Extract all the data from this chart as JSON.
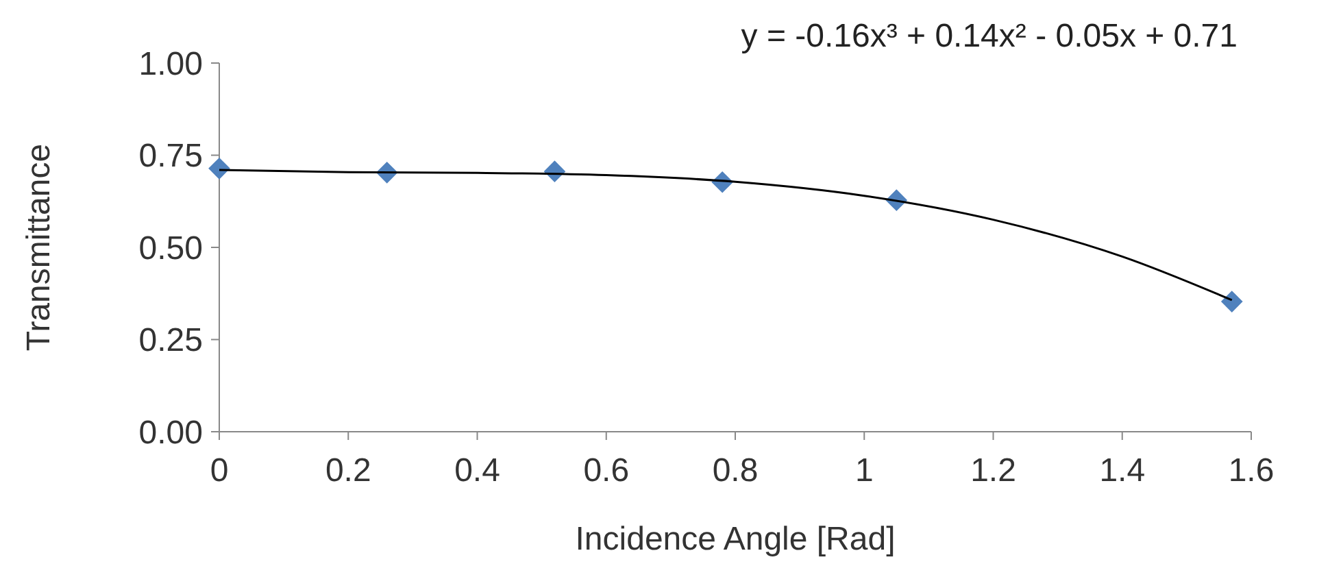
{
  "chart_data": {
    "type": "scatter",
    "xlabel": "Incidence Angle [Rad]",
    "ylabel": "Transmittance",
    "annotations": [
      "y = -0.16x³ + 0.14x² - 0.05x + 0.71"
    ],
    "xlim": [
      0,
      1.6
    ],
    "xticks": [
      {
        "value": 0,
        "label": "0"
      },
      0.2,
      0.4,
      0.6,
      0.8,
      {
        "value": 1,
        "label": "1"
      },
      1.2,
      1.4,
      1.6
    ],
    "ylim": [
      0,
      1
    ],
    "yticks": [
      {
        "value": 0,
        "label": "0.00"
      },
      {
        "value": 0.25,
        "label": "0.25"
      },
      {
        "value": 0.5,
        "label": "0.50"
      },
      {
        "value": 0.75,
        "label": "0.75"
      },
      {
        "value": 1,
        "label": "1.00"
      }
    ],
    "grid": false,
    "series": [
      {
        "color": "#4f81bd",
        "marker": "diamond",
        "x": [
          0,
          0.26,
          0.52,
          0.78,
          1.05,
          1.57
        ],
        "values": [
          0.714,
          0.703,
          0.706,
          0.677,
          0.628,
          0.353
        ]
      },
      {
        "type": "line",
        "color": "#000000",
        "marker": "none",
        "line_style": "solid",
        "x": [
          0,
          0.2,
          0.4,
          0.6,
          0.8,
          1.0,
          1.2,
          1.4,
          1.57
        ],
        "values": [
          0.71,
          0.704,
          0.702,
          0.696,
          0.678,
          0.64,
          0.575,
          0.475,
          0.357
        ]
      }
    ]
  }
}
